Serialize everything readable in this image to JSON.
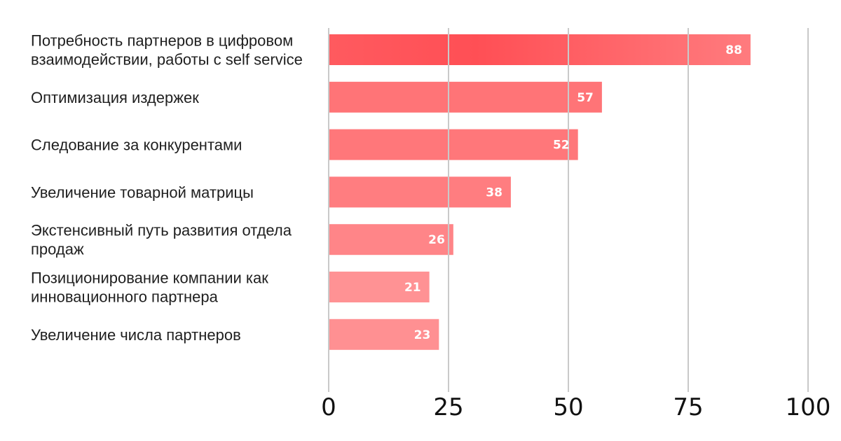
{
  "chart_data": {
    "type": "bar",
    "orientation": "horizontal",
    "title": "",
    "xlabel": "",
    "ylabel": "",
    "categories": [
      "Потребность партнеров в цифровом взаимодействии, работы с self service",
      "Оптимизация издержек",
      "Следование за конкурентами",
      "Увеличение товарной матрицы",
      "Экстенсивный путь развития отдела продаж",
      "Позиционирование компании как инновационного партнера",
      "Увеличение числа партнеров"
    ],
    "category_lines": [
      [
        "Потребность партнеров в цифровом",
        "взаимодействии, работы с self service"
      ],
      [
        "Оптимизация издержек"
      ],
      [
        "Следование за конкурентами"
      ],
      [
        "Увеличение товарной матрицы"
      ],
      [
        "Экстенсивный путь развития отдела",
        "продаж"
      ],
      [
        "Позиционирование компании как",
        "инновационного партнера"
      ],
      [
        "Увеличение числа партнеров"
      ]
    ],
    "values": [
      88,
      57,
      52,
      38,
      26,
      21,
      23
    ],
    "value_labels": [
      "88",
      "57",
      "52",
      "38",
      "26",
      "21",
      "23"
    ],
    "xlim": [
      0,
      100
    ],
    "xticks": [
      0,
      25,
      50,
      75,
      100
    ],
    "xtick_labels": [
      "0",
      "25",
      "50",
      "75",
      "100"
    ],
    "grid": true,
    "colors": {
      "bar_strong": "#ff5a5f",
      "bar_mid": "#ff7b7e",
      "bar_light": "#ff9797",
      "grid": "#c9c9c9"
    }
  }
}
